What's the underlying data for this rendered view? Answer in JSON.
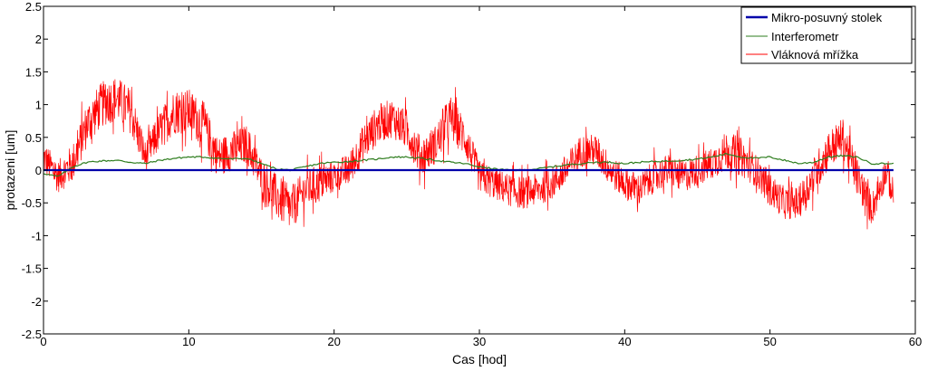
{
  "chart_data": {
    "type": "line",
    "title": "",
    "xlabel": "Cas [hod]",
    "ylabel": "protazeni [um]",
    "xlim": [
      0,
      60
    ],
    "ylim": [
      -2.5,
      2.5
    ],
    "x_ticks": [
      0,
      10,
      20,
      30,
      40,
      50,
      60
    ],
    "x_tick_labels": [
      "0",
      "10",
      "20",
      "30",
      "40",
      "50",
      "60"
    ],
    "y_ticks": [
      -2.5,
      -2,
      -1.5,
      -1,
      -0.5,
      0,
      0.5,
      1,
      1.5,
      2,
      2.5
    ],
    "y_tick_labels": [
      "-2.5",
      "-2",
      "-1.5",
      "-1",
      "-0.5",
      "0",
      "0.5",
      "1",
      "1.5",
      "2",
      "2.5"
    ],
    "grid": false,
    "legend_position": "top-right",
    "series": [
      {
        "name": "Mikro-posuvný stolek",
        "color": "#0000aa",
        "x": [
          0,
          5,
          10,
          15,
          20,
          25,
          30,
          35,
          40,
          45,
          50,
          55,
          58.5
        ],
        "y": [
          0,
          0,
          0,
          0,
          0,
          0,
          0,
          0,
          0,
          0,
          0,
          0,
          0
        ]
      },
      {
        "name": "Interferometr",
        "color": "#2e7d1e",
        "x": [
          0,
          1,
          2,
          3,
          4,
          5,
          6,
          7,
          8,
          9,
          10,
          11,
          12,
          13,
          14,
          15,
          16,
          17,
          18,
          19,
          20,
          21,
          22,
          23,
          24,
          25,
          26,
          27,
          28,
          29,
          30,
          31,
          32,
          33,
          34,
          35,
          36,
          37,
          38,
          39,
          40,
          41,
          42,
          43,
          44,
          45,
          46,
          47,
          48,
          49,
          50,
          51,
          52,
          53,
          54,
          55,
          56,
          57,
          58,
          58.5
        ],
        "y": [
          -0.05,
          -0.1,
          0.05,
          0.12,
          0.14,
          0.15,
          0.12,
          0.1,
          0.15,
          0.18,
          0.2,
          0.2,
          0.18,
          0.17,
          0.18,
          0.1,
          0.02,
          0.0,
          0.05,
          0.1,
          0.12,
          0.13,
          0.15,
          0.17,
          0.2,
          0.2,
          0.18,
          0.15,
          0.12,
          0.1,
          0.05,
          0.02,
          0.0,
          0.0,
          0.02,
          0.05,
          0.08,
          0.1,
          0.12,
          0.12,
          0.1,
          0.12,
          0.13,
          0.14,
          0.15,
          0.17,
          0.2,
          0.25,
          0.2,
          0.18,
          0.2,
          0.15,
          0.1,
          0.12,
          0.2,
          0.22,
          0.2,
          0.1,
          0.1,
          0.1
        ]
      },
      {
        "name": "Vláknová mřížka",
        "color": "#ff0000",
        "x": [
          0,
          1,
          2,
          3,
          4,
          5,
          6,
          7,
          8,
          9,
          10,
          11,
          12,
          13,
          14,
          15,
          16,
          17,
          18,
          19,
          20,
          21,
          22,
          23,
          24,
          25,
          26,
          27,
          28,
          29,
          30,
          31,
          32,
          33,
          34,
          35,
          36,
          37,
          38,
          39,
          40,
          41,
          42,
          43,
          44,
          45,
          46,
          47,
          48,
          49,
          50,
          51,
          52,
          53,
          54,
          55,
          56,
          57,
          58,
          58.5
        ],
        "y": [
          0.2,
          -0.1,
          0.1,
          0.7,
          1.0,
          1.1,
          0.9,
          0.2,
          0.6,
          0.9,
          0.9,
          0.7,
          0.2,
          0.3,
          0.4,
          -0.1,
          -0.4,
          -0.6,
          -0.3,
          -0.2,
          -0.1,
          0.0,
          0.4,
          0.7,
          0.8,
          0.6,
          0.2,
          0.4,
          0.8,
          0.5,
          -0.1,
          -0.2,
          -0.3,
          -0.35,
          -0.3,
          -0.2,
          0.0,
          0.3,
          0.3,
          0.0,
          -0.2,
          -0.3,
          -0.1,
          0.0,
          -0.1,
          0.0,
          0.1,
          0.3,
          0.2,
          0.0,
          -0.3,
          -0.5,
          -0.5,
          -0.1,
          0.3,
          0.5,
          -0.1,
          -0.6,
          0.0,
          -0.4
        ],
        "amplitude": [
          0.25,
          0.25,
          0.3,
          0.35,
          0.35,
          0.35,
          0.35,
          0.25,
          0.3,
          0.35,
          0.35,
          0.35,
          0.3,
          0.3,
          0.3,
          0.3,
          0.35,
          0.35,
          0.3,
          0.3,
          0.25,
          0.25,
          0.3,
          0.3,
          0.3,
          0.3,
          0.3,
          0.3,
          0.35,
          0.3,
          0.25,
          0.25,
          0.25,
          0.25,
          0.25,
          0.25,
          0.25,
          0.25,
          0.25,
          0.25,
          0.25,
          0.25,
          0.25,
          0.25,
          0.25,
          0.25,
          0.25,
          0.3,
          0.3,
          0.25,
          0.25,
          0.25,
          0.25,
          0.3,
          0.3,
          0.3,
          0.3,
          0.25,
          0.25,
          0.25
        ]
      }
    ]
  }
}
